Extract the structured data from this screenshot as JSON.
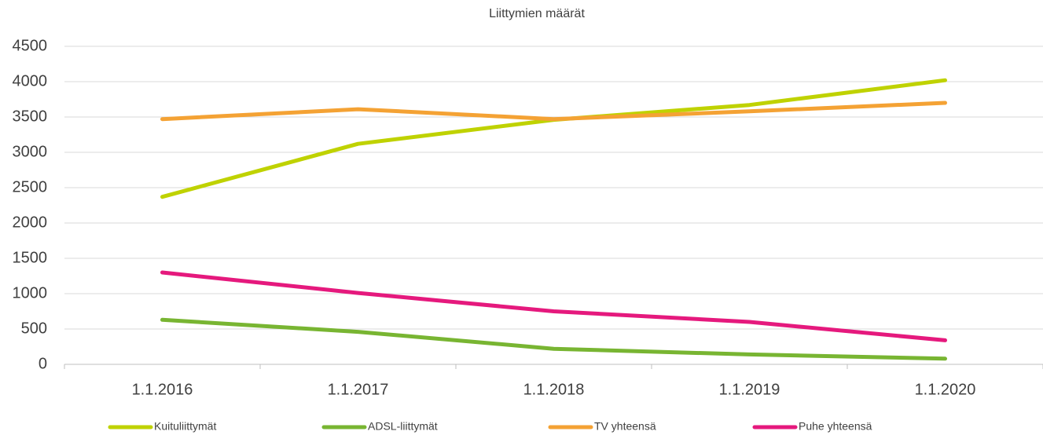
{
  "chart_data": {
    "type": "line",
    "title": "Liittymien määrät",
    "categories": [
      "1.1.2016",
      "1.1.2017",
      "1.1.2018",
      "1.1.2019",
      "1.1.2020"
    ],
    "series": [
      {
        "name": "Kuituliittymät",
        "color": "#bfd200",
        "values": [
          2370,
          3120,
          3460,
          3670,
          4020
        ]
      },
      {
        "name": "ADSL-liittymät",
        "color": "#78b532",
        "values": [
          630,
          460,
          220,
          140,
          80
        ]
      },
      {
        "name": "TV yhteensä",
        "color": "#f4a234",
        "values": [
          3470,
          3610,
          3470,
          3580,
          3700
        ]
      },
      {
        "name": "Puhe yhteensä",
        "color": "#e5197d",
        "values": [
          1300,
          1010,
          750,
          600,
          340
        ]
      }
    ],
    "ylim": [
      0,
      4500
    ],
    "yticks": [
      0,
      500,
      1000,
      1500,
      2000,
      2500,
      3000,
      3500,
      4000,
      4500
    ],
    "grid": true,
    "legend": "bottom"
  }
}
